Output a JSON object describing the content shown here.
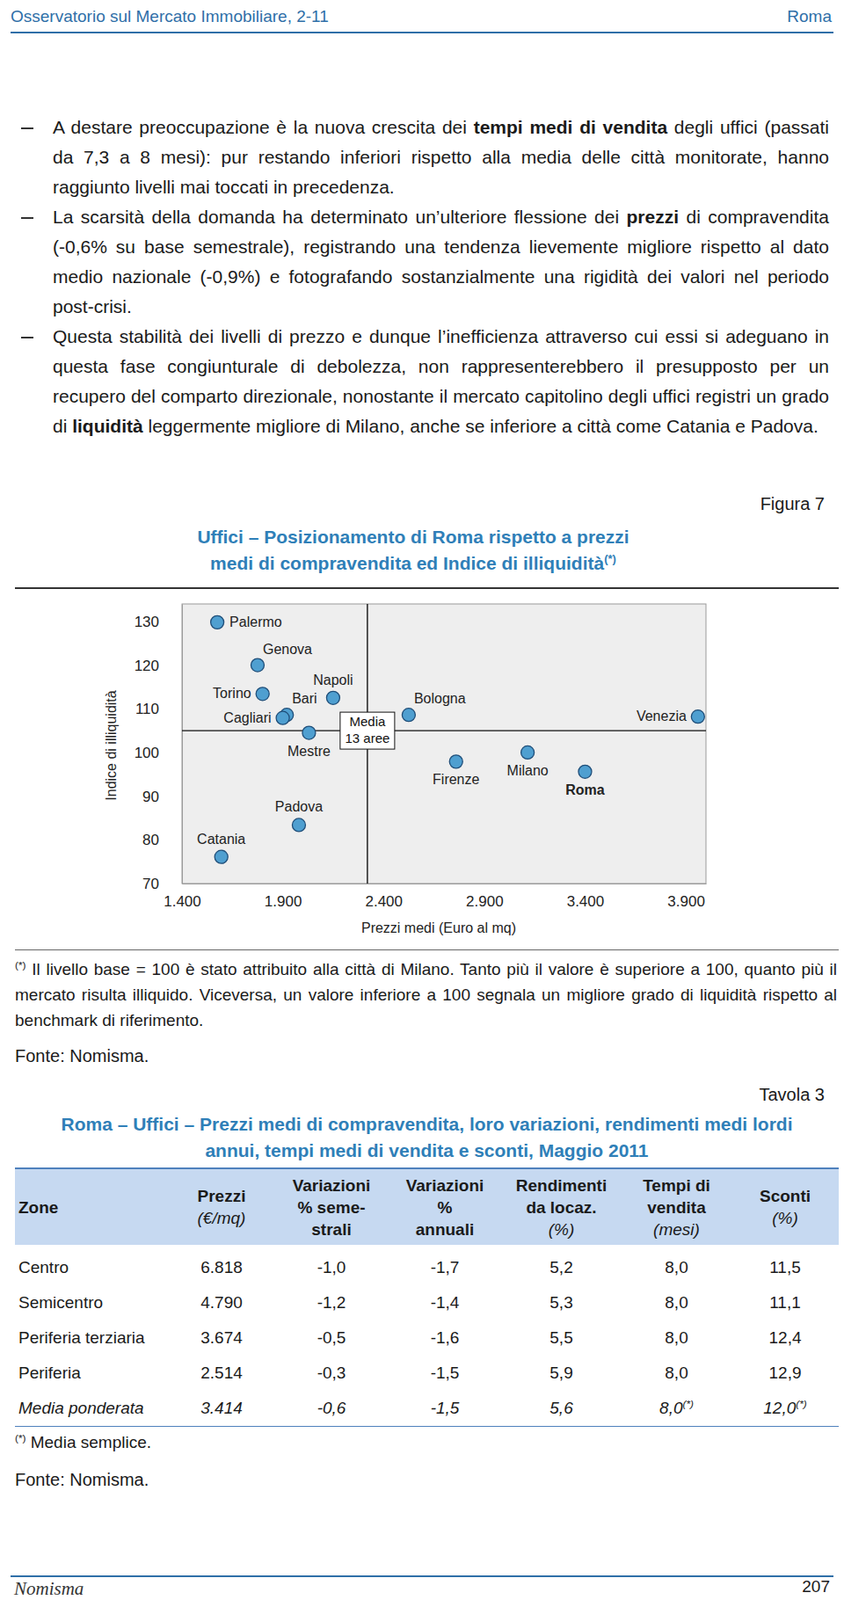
{
  "header": {
    "left": "Osservatorio sul Mercato Immobiliare, 2-11",
    "right": "Roma"
  },
  "bullets": [
    [
      {
        "text": "A destare preoccupazione è la nuova crescita dei ",
        "bold": false
      },
      {
        "text": "tempi medi di vendita",
        "bold": true
      },
      {
        "text": " degli uffici (passati da 7,3 a 8 mesi): pur restando inferiori rispetto alla media delle città monitorate, hanno raggiunto livelli mai toccati in precedenza.",
        "bold": false
      }
    ],
    [
      {
        "text": "La scarsità della domanda ha determinato un’ulteriore flessione dei ",
        "bold": false
      },
      {
        "text": "prezzi",
        "bold": true
      },
      {
        "text": " di compravendita (-0,6% su base semestrale), registrando una tendenza lievemente migliore rispetto al dato medio nazionale (-0,9%) e fotografando sostanzialmente una rigidità dei valori nel periodo post-crisi.",
        "bold": false
      }
    ],
    [
      {
        "text": "Questa stabilità dei livelli di prezzo e dunque l’inefficienza attraverso cui essi si adeguano in questa fase congiunturale di debolezza, non rappresenterebbero il presupposto per un recupero del comparto direzionale, nonostante il mercato capitolino degli uffici registri un grado di ",
        "bold": false
      },
      {
        "text": "liquidità",
        "bold": true
      },
      {
        "text": " leggermente migliore di Milano, anche se inferiore a città come Catania e Padova.",
        "bold": false
      }
    ]
  ],
  "figure": {
    "label": "Figura 7",
    "footnote_mark": "(*)",
    "footnote": "Il livello base = 100 è stato attribuito alla città di Milano. Tanto più il valore è superiore a 100, quanto più il mercato risulta illiquido. Viceversa, un valore inferiore a 100 segnala un migliore grado di liquidità rispetto al benchmark di riferimento.",
    "source": "Fonte: Nomisma."
  },
  "chart_data": {
    "type": "scatter",
    "title": [
      "Uffici – Posizionamento di Roma rispetto a prezzi",
      "medi di compravendita ed Indice di illiquidità"
    ],
    "title_note": "(*)",
    "xlabel": "Prezzi medi (Euro al mq)",
    "ylabel": "Indice di illiquidità",
    "labels": [
      "Palermo",
      "Genova",
      "Torino",
      "Bari",
      "Cagliari",
      "Napoli",
      "Mestre",
      "Padova",
      "Catania",
      "Bologna",
      "Firenze",
      "Milano",
      "Roma",
      "Venezia"
    ],
    "x": [
      1575,
      1775,
      1800,
      1920,
      1900,
      2150,
      2030,
      1980,
      1595,
      2525,
      2760,
      3115,
      3400,
      3960
    ],
    "values": [
      129.8,
      120,
      113.4,
      108.6,
      107.9,
      112.5,
      104.5,
      83.4,
      76.1,
      108.6,
      97.9,
      100,
      95.6,
      108.2
    ],
    "color": "#4f9fd0",
    "marker": "circle",
    "xlim": [
      1400,
      4000
    ],
    "ylim": [
      70,
      134
    ],
    "xticks": [
      {
        "value": 1400,
        "label": "1.400"
      },
      {
        "value": 1900,
        "label": "1.900"
      },
      {
        "value": 2400,
        "label": "2.400"
      },
      {
        "value": 2900,
        "label": "2.900"
      },
      {
        "value": 3400,
        "label": "3.400"
      },
      {
        "value": 3900,
        "label": "3.900"
      }
    ],
    "yticks": [
      70,
      80,
      90,
      100,
      110,
      120,
      130
    ],
    "grid": false,
    "reference": {
      "x": 2320,
      "y": 105,
      "label": [
        "Media",
        "13 aree"
      ]
    }
  },
  "table_section": {
    "label": "Tavola 3",
    "title": [
      "Roma – Uffici – Prezzi medi di compravendita, loro variazioni, rendimenti medi lordi",
      "annui, tempi medi di vendita e sconti, Maggio 2011"
    ],
    "header": [
      [
        "Zone"
      ],
      [
        "Prezzi",
        "(€/mq)"
      ],
      [
        "Variazioni",
        "% seme-",
        "strali"
      ],
      [
        "Variazioni",
        "%",
        "annuali"
      ],
      [
        "Rendimenti",
        "da locaz.",
        "(%)"
      ],
      [
        "Tempi di",
        "vendita",
        "(mesi)"
      ],
      [
        "Sconti",
        "(%)"
      ]
    ],
    "rows": [
      [
        "Centro",
        "6.818",
        "-1,0",
        "-1,7",
        "5,2",
        "8,0",
        "11,5"
      ],
      [
        "Semicentro",
        "4.790",
        "-1,2",
        "-1,4",
        "5,3",
        "8,0",
        "11,1"
      ],
      [
        "Periferia terziaria",
        "3.674",
        "-0,5",
        "-1,6",
        "5,5",
        "8,0",
        "12,4"
      ],
      [
        "Periferia",
        "2.514",
        "-0,3",
        "-1,5",
        "5,9",
        "8,0",
        "12,9"
      ],
      [
        "Media ponderata",
        "3.414",
        "-0,6",
        "-1,5",
        "5,6",
        {
          "text": "8,0",
          "note": "(*)"
        },
        {
          "text": "12,0",
          "note": "(*)"
        }
      ]
    ],
    "note_mark": "(*)",
    "note": "Media semplice.",
    "source": "Fonte: Nomisma."
  },
  "footer": {
    "brand": "Nomisma",
    "page": "207"
  }
}
